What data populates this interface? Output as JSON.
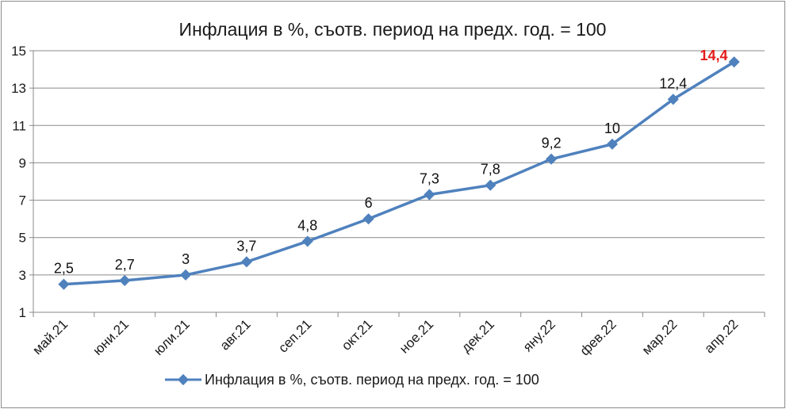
{
  "chart_data": {
    "type": "line",
    "title": "Инфлация в %, съотв. период на предх. год. = 100",
    "categories": [
      "май.21",
      "юни.21",
      "юли.21",
      "авг.21",
      "сеп.21",
      "окт.21",
      "ное.21",
      "дек.21",
      "яну.22",
      "фев.22",
      "мар.22",
      "апр.22"
    ],
    "series": [
      {
        "name": "Инфлация в %, съотв. период на предх. год. = 100",
        "values": [
          2.5,
          2.7,
          3,
          3.7,
          4.8,
          6,
          7.3,
          7.8,
          9.2,
          10,
          12.4,
          14.4
        ],
        "labels": [
          "2,5",
          "2,7",
          "3",
          "3,7",
          "4,8",
          "6",
          "7,3",
          "7,8",
          "9,2",
          "10",
          "12,4",
          "14,4"
        ],
        "color": "#4f81bd",
        "highlight_label_index": 11,
        "highlight_color": "#e31b1b"
      }
    ],
    "yticks": [
      1,
      3,
      5,
      7,
      9,
      11,
      13,
      15
    ],
    "ylim": [
      1,
      15
    ],
    "grid": true,
    "legend_position": "bottom"
  }
}
